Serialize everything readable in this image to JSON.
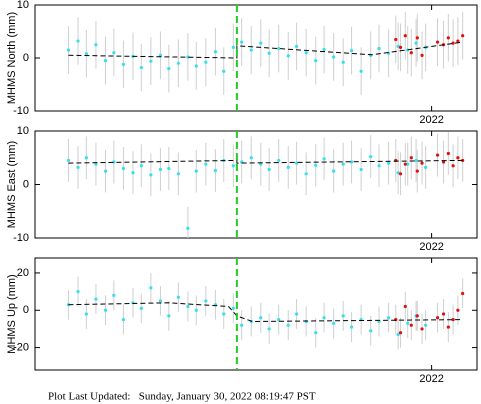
{
  "chart_data": [
    {
      "type": "scatter",
      "ylabel": "MHMS North (mm)",
      "xlim": [
        2018.68,
        2022.38
      ],
      "ylim": [
        -10,
        10
      ],
      "yticks": [
        -10,
        0,
        10
      ],
      "xticks": [
        2022
      ],
      "vline": {
        "x": 2020.37,
        "color": "#22cc22"
      },
      "series": [
        {
          "kind": "points",
          "color": "#33e0ee",
          "error": 4.5,
          "x": [
            2018.96,
            2019.04,
            2019.11,
            2019.19,
            2019.27,
            2019.34,
            2019.42,
            2019.5,
            2019.57,
            2019.65,
            2019.73,
            2019.8,
            2019.88,
            2019.96,
            2020.03,
            2020.11,
            2020.19,
            2020.26,
            2020.34,
            2020.41,
            2020.49,
            2020.57,
            2020.64,
            2020.72,
            2020.8,
            2020.87,
            2020.95,
            2021.03,
            2021.1,
            2021.18,
            2021.26,
            2021.33,
            2021.41,
            2021.49,
            2021.56,
            2021.64,
            2021.72,
            2021.8,
            2021.87,
            2021.95
          ],
          "values": [
            1.5,
            3.2,
            0.8,
            2.5,
            -0.5,
            1.0,
            -1.2,
            0.3,
            -1.8,
            -0.6,
            0.5,
            -2.0,
            -1.0,
            0.2,
            -1.5,
            -0.8,
            1.2,
            -2.5,
            2.0,
            3.0,
            1.5,
            2.8,
            0.9,
            1.8,
            0.4,
            2.2,
            1.0,
            -0.5,
            1.6,
            0.2,
            -0.8,
            1.4,
            -2.5,
            0.5,
            1.8,
            0.9,
            2.2,
            1.5,
            2.8,
            2.0
          ]
        },
        {
          "kind": "points",
          "color": "#e01010",
          "error": 4.5,
          "x": [
            2021.7,
            2021.74,
            2021.78,
            2021.83,
            2021.88,
            2021.92,
            2022.05,
            2022.1,
            2022.14,
            2022.18,
            2022.22,
            2022.26
          ],
          "values": [
            3.5,
            2.0,
            4.2,
            1.0,
            3.8,
            0.5,
            3.0,
            2.5,
            3.8,
            2.8,
            3.2,
            4.2
          ]
        },
        {
          "kind": "line",
          "color": "#000000",
          "x": [
            2018.96,
            2020.37,
            2020.37,
            2021.5,
            2022.26
          ],
          "values": [
            0.5,
            0,
            2.3,
            0.6,
            3.0
          ]
        }
      ]
    },
    {
      "type": "scatter",
      "ylabel": "MHMS East (mm)",
      "xlim": [
        2018.68,
        2022.38
      ],
      "ylim": [
        -10,
        10
      ],
      "yticks": [
        -10,
        0,
        10
      ],
      "xticks": [
        2022
      ],
      "vline": {
        "x": 2020.37,
        "color": "#22cc22"
      },
      "series": [
        {
          "kind": "points",
          "color": "#33e0ee",
          "error": 4.0,
          "x": [
            2018.96,
            2019.04,
            2019.11,
            2019.19,
            2019.27,
            2019.34,
            2019.42,
            2019.5,
            2019.57,
            2019.65,
            2019.73,
            2019.8,
            2019.88,
            2019.96,
            2020.03,
            2020.11,
            2020.19,
            2020.26,
            2020.34,
            2020.41,
            2020.49,
            2020.57,
            2020.64,
            2020.72,
            2020.8,
            2020.87,
            2020.95,
            2021.03,
            2021.1,
            2021.18,
            2021.26,
            2021.33,
            2021.41,
            2021.49,
            2021.56,
            2021.64,
            2021.72,
            2021.8,
            2021.87,
            2021.95
          ],
          "values": [
            4.5,
            3.2,
            5.0,
            3.8,
            2.5,
            4.2,
            3.0,
            2.2,
            3.5,
            1.8,
            2.8,
            3.0,
            2.0,
            -8.2,
            2.5,
            3.8,
            2.6,
            4.5,
            3.5,
            4.2,
            5.0,
            3.8,
            2.8,
            4.5,
            3.2,
            4.0,
            2.0,
            3.6,
            4.8,
            2.5,
            3.8,
            4.2,
            2.8,
            5.2,
            3.5,
            4.0,
            2.2,
            3.8,
            4.5,
            3.2
          ]
        },
        {
          "kind": "points",
          "color": "#e01010",
          "error": 4.0,
          "x": [
            2021.7,
            2021.74,
            2021.78,
            2021.83,
            2021.88,
            2021.92,
            2022.05,
            2022.1,
            2022.14,
            2022.18,
            2022.22,
            2022.26
          ],
          "values": [
            4.5,
            2.0,
            3.8,
            5.0,
            2.5,
            4.0,
            5.5,
            4.2,
            5.8,
            3.5,
            5.0,
            4.5
          ]
        },
        {
          "kind": "line",
          "color": "#000000",
          "x": [
            2018.96,
            2020.37,
            2020.37,
            2022.26
          ],
          "values": [
            4.0,
            4.5,
            4.0,
            4.5
          ]
        }
      ]
    },
    {
      "type": "scatter",
      "ylabel": "MHMS Up (mm)",
      "xlim": [
        2018.68,
        2022.38
      ],
      "ylim": [
        -32,
        28
      ],
      "yticks": [
        -20,
        0,
        20
      ],
      "xticks": [
        2022
      ],
      "vline": {
        "x": 2020.37,
        "color": "#22cc22"
      },
      "series": [
        {
          "kind": "points",
          "color": "#33e0ee",
          "error": 8,
          "x": [
            2018.96,
            2019.04,
            2019.11,
            2019.19,
            2019.27,
            2019.34,
            2019.42,
            2019.5,
            2019.57,
            2019.65,
            2019.73,
            2019.8,
            2019.88,
            2019.96,
            2020.03,
            2020.11,
            2020.19,
            2020.26,
            2020.34,
            2020.41,
            2020.49,
            2020.57,
            2020.64,
            2020.72,
            2020.8,
            2020.87,
            2020.95,
            2021.03,
            2021.1,
            2021.18,
            2021.26,
            2021.33,
            2021.41,
            2021.49,
            2021.56,
            2021.64,
            2021.72,
            2021.8,
            2021.87,
            2021.95
          ],
          "values": [
            3,
            10,
            -2,
            6,
            0,
            8,
            -5,
            4,
            1,
            12,
            5,
            -3,
            7,
            2,
            0,
            5,
            3,
            -2,
            1,
            -8,
            -6,
            -4,
            -10,
            -5,
            -8,
            -2,
            -6,
            -12,
            -4,
            -7,
            -3,
            -9,
            -5,
            -11,
            -6,
            -4,
            -13,
            -7,
            -3,
            -8
          ]
        },
        {
          "kind": "points",
          "color": "#e01010",
          "error": 8,
          "x": [
            2021.7,
            2021.74,
            2021.78,
            2021.83,
            2021.88,
            2021.92,
            2022.05,
            2022.1,
            2022.14,
            2022.18,
            2022.22,
            2022.26
          ],
          "values": [
            -5,
            -12,
            2,
            -8,
            -3,
            -10,
            -4,
            -2,
            -9,
            -5,
            0,
            9
          ]
        },
        {
          "kind": "line",
          "color": "#000000",
          "x": [
            2018.96,
            2019.8,
            2020.3,
            2020.37,
            2020.5,
            2022.26
          ],
          "values": [
            3,
            4,
            2,
            -3,
            -6,
            -5
          ]
        }
      ]
    }
  ],
  "footer": "Plot Last Updated:   Sunday, January 30, 2022 08:19:47 PST"
}
